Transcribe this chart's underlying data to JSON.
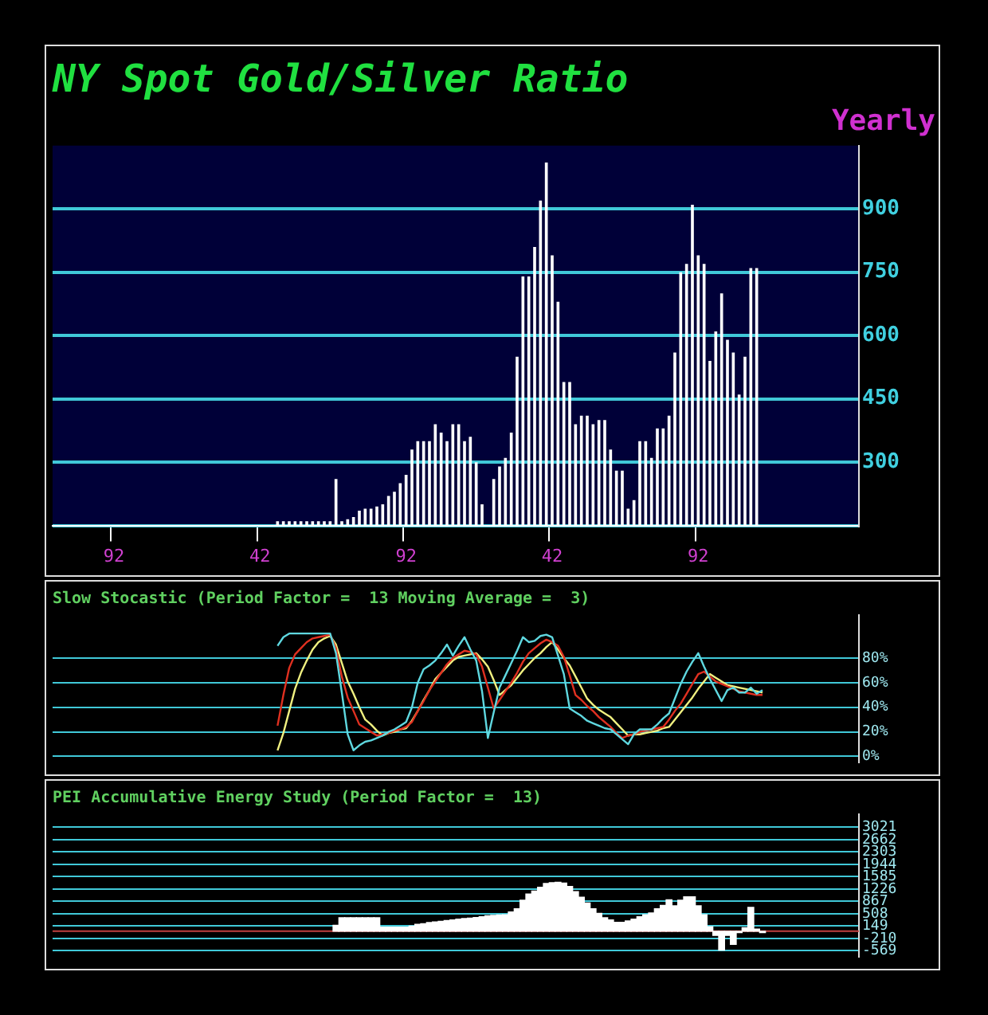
{
  "chart_data": [
    {
      "type": "bar",
      "title": "NY Spot Gold/Silver Ratio",
      "subtitle": "Yearly",
      "color": "#ffffff",
      "categories": [
        null,
        null,
        null,
        null,
        null,
        null,
        null,
        null,
        null,
        null,
        "92",
        null,
        null,
        null,
        null,
        null,
        null,
        null,
        null,
        null,
        null,
        null,
        null,
        null,
        null,
        null,
        null,
        null,
        null,
        null,
        null,
        null,
        null,
        null,
        null,
        "42",
        null,
        null,
        null,
        null,
        null,
        null,
        null,
        null,
        null,
        null,
        null,
        null,
        null,
        null,
        null,
        null,
        null,
        null,
        null,
        null,
        null,
        null,
        null,
        null,
        "92",
        null,
        null,
        null,
        null,
        null,
        null,
        null,
        null,
        null,
        null,
        null,
        null,
        null,
        null,
        null,
        null,
        null,
        null,
        null,
        null,
        null,
        null,
        null,
        null,
        "42",
        null,
        null,
        null,
        null,
        null,
        null,
        null,
        null,
        null,
        null,
        null,
        null,
        null,
        null,
        null,
        null,
        null,
        null,
        null,
        null,
        null,
        null,
        null,
        null,
        "92",
        null,
        null,
        null,
        null,
        null,
        null,
        null,
        null,
        null,
        null,
        null,
        null,
        null,
        null,
        null,
        null,
        null,
        null,
        null,
        null,
        null,
        null,
        null,
        null,
        null,
        null,
        null
      ],
      "values": [
        null,
        null,
        null,
        null,
        null,
        null,
        null,
        null,
        null,
        null,
        null,
        null,
        null,
        null,
        null,
        null,
        null,
        null,
        null,
        null,
        null,
        null,
        null,
        null,
        null,
        null,
        null,
        null,
        null,
        null,
        null,
        null,
        null,
        null,
        null,
        null,
        null,
        null,
        160,
        160,
        160,
        160,
        160,
        160,
        160,
        160,
        160,
        160,
        260,
        160,
        165,
        170,
        185,
        190,
        190,
        195,
        200,
        220,
        230,
        250,
        270,
        330,
        350,
        350,
        350,
        390,
        370,
        350,
        390,
        390,
        350,
        360,
        300,
        200,
        150,
        260,
        290,
        310,
        370,
        550,
        740,
        740,
        810,
        920,
        1010,
        790,
        680,
        490,
        490,
        390,
        410,
        410,
        390,
        400,
        400,
        330,
        280,
        280,
        190,
        210,
        350,
        350,
        310,
        380,
        380,
        410,
        560,
        750,
        770,
        910,
        790,
        770,
        540,
        610,
        700,
        590,
        560,
        460,
        550,
        760,
        760,
        null,
        null,
        null,
        null,
        null,
        null,
        null,
        null,
        null,
        null,
        null,
        null,
        null,
        null,
        null,
        null,
        null
      ],
      "ylim": [
        150,
        1050
      ],
      "yticks": [
        {
          "value": 150,
          "label": null
        },
        300,
        450,
        600,
        750,
        900
      ],
      "grid": "y"
    },
    {
      "type": "line",
      "title": "Slow Stocastic (Period Factor =  13 Moving Average =  3)",
      "ylim": [
        -5,
        115
      ],
      "categories": [
        null,
        null,
        null,
        null,
        null,
        null,
        null,
        null,
        null,
        null,
        null,
        null,
        null,
        null,
        null,
        null,
        null,
        null,
        null,
        null,
        null,
        null,
        null,
        null,
        null,
        null,
        null,
        null,
        null,
        null,
        null,
        null,
        null,
        null,
        null,
        null,
        null,
        null,
        null,
        null,
        null,
        null,
        null,
        null,
        null,
        null,
        null,
        null,
        null,
        null,
        null,
        null,
        null,
        null,
        null,
        null,
        null,
        null,
        null,
        null,
        null,
        null,
        null,
        null,
        null,
        null,
        null,
        null,
        null,
        null,
        null,
        null,
        null,
        null,
        null,
        null,
        null,
        null,
        null,
        null,
        null,
        null,
        null,
        null,
        null,
        null,
        null,
        null,
        null,
        null,
        null,
        null,
        null,
        null,
        null,
        null,
        null,
        null,
        null,
        null,
        null,
        null,
        null,
        null,
        null,
        null,
        null,
        null,
        null,
        null,
        null,
        null,
        null,
        null,
        null,
        null,
        null,
        null,
        null,
        null,
        null,
        null,
        null,
        null,
        null,
        null,
        null,
        null,
        null,
        null,
        null,
        null,
        null,
        null,
        null,
        null,
        null,
        null
      ],
      "yticks": [
        {
          "value": 0,
          "label": "0%"
        },
        {
          "value": 20,
          "label": "20%"
        },
        {
          "value": 40,
          "label": "40%"
        },
        {
          "value": 60,
          "label": "60%"
        },
        {
          "value": 80,
          "label": "80%"
        }
      ],
      "grid": "y",
      "tick_labels": "y",
      "series": [
        {
          "color": "#5fd8e0",
          "values": [
            null,
            null,
            null,
            null,
            null,
            null,
            null,
            null,
            null,
            null,
            null,
            null,
            null,
            null,
            null,
            null,
            null,
            null,
            null,
            null,
            null,
            null,
            null,
            null,
            null,
            null,
            null,
            null,
            null,
            null,
            null,
            null,
            null,
            null,
            null,
            null,
            null,
            null,
            90,
            97,
            100,
            100,
            100,
            100,
            100,
            100,
            100,
            100,
            84,
            52,
            18,
            5,
            9,
            12,
            13,
            15,
            17,
            20,
            22,
            25,
            28,
            40,
            60,
            71,
            74,
            78,
            84,
            91,
            82,
            90,
            97,
            87,
            78,
            53,
            15,
            36,
            56,
            66,
            76,
            86,
            97,
            93,
            94,
            98,
            99,
            97,
            82,
            67,
            39,
            36,
            33,
            29,
            27,
            25,
            23,
            22,
            18,
            14,
            10,
            18,
            22,
            22,
            22,
            26,
            31,
            35,
            47,
            59,
            69,
            77,
            84,
            73,
            63,
            54,
            45,
            54,
            56,
            52,
            52,
            56,
            51,
            54,
            null,
            null,
            null,
            null,
            null,
            null,
            null,
            null,
            null,
            null,
            null,
            null,
            null,
            null,
            null,
            null
          ]
        },
        {
          "color": "#e03020",
          "values": [
            null,
            null,
            null,
            null,
            null,
            null,
            null,
            null,
            null,
            null,
            null,
            null,
            null,
            null,
            null,
            null,
            null,
            null,
            null,
            null,
            null,
            null,
            null,
            null,
            null,
            null,
            null,
            null,
            null,
            null,
            null,
            null,
            null,
            null,
            null,
            null,
            null,
            null,
            25,
            50,
            72,
            83,
            88,
            93,
            96,
            97,
            98,
            99,
            88,
            65,
            48,
            37,
            26,
            23,
            20,
            17,
            18,
            19,
            21,
            22,
            24,
            28,
            37,
            45,
            54,
            61,
            68,
            75,
            80,
            83,
            86,
            85,
            83,
            73,
            56,
            39,
            46,
            53,
            60,
            68,
            77,
            84,
            88,
            92,
            95,
            93,
            90,
            81,
            66,
            50,
            46,
            41,
            37,
            32,
            28,
            24,
            19,
            15,
            17,
            18,
            20,
            21,
            22,
            23,
            24,
            30,
            37,
            43,
            51,
            59,
            67,
            69,
            65,
            61,
            59,
            57,
            55,
            53,
            52,
            51,
            50,
            50,
            null,
            null,
            null,
            null,
            null,
            null,
            null,
            null,
            null,
            null,
            null,
            null,
            null,
            null,
            null,
            null
          ]
        },
        {
          "color": "#f0f080",
          "values": [
            null,
            null,
            null,
            null,
            null,
            null,
            null,
            null,
            null,
            null,
            null,
            null,
            null,
            null,
            null,
            null,
            null,
            null,
            null,
            null,
            null,
            null,
            null,
            null,
            null,
            null,
            null,
            null,
            null,
            null,
            null,
            null,
            null,
            null,
            null,
            null,
            null,
            null,
            5,
            19,
            37,
            55,
            68,
            78,
            87,
            93,
            96,
            98,
            91,
            76,
            61,
            51,
            40,
            30,
            26,
            21,
            17,
            19,
            20,
            22,
            23,
            29,
            37,
            46,
            54,
            63,
            68,
            73,
            78,
            81,
            82,
            83,
            84,
            79,
            73,
            62,
            50,
            54,
            58,
            64,
            70,
            75,
            80,
            84,
            89,
            93,
            87,
            80,
            74,
            65,
            56,
            47,
            42,
            38,
            35,
            32,
            27,
            22,
            17,
            18,
            18,
            19,
            20,
            21,
            23,
            24,
            30,
            36,
            42,
            48,
            55,
            61,
            67,
            64,
            61,
            58,
            57,
            56,
            55,
            54,
            53,
            52,
            null,
            null,
            null,
            null,
            null,
            null,
            null,
            null,
            null,
            null,
            null,
            null,
            null,
            null,
            null,
            null
          ]
        }
      ]
    },
    {
      "type": "bar",
      "title": "PEI Accumulative Energy Study (Period Factor =  13)",
      "color": "#ffffff",
      "ylim": [
        -750,
        3400
      ],
      "categories": [
        null,
        null,
        null,
        null,
        null,
        null,
        null,
        null,
        null,
        null,
        null,
        null,
        null,
        null,
        null,
        null,
        null,
        null,
        null,
        null,
        null,
        null,
        null,
        null,
        null,
        null,
        null,
        null,
        null,
        null,
        null,
        null,
        null,
        null,
        null,
        null,
        null,
        null,
        null,
        null,
        null,
        null,
        null,
        null,
        null,
        null,
        null,
        null,
        null,
        null,
        null,
        null,
        null,
        null,
        null,
        null,
        null,
        null,
        null,
        null,
        null,
        null,
        null,
        null,
        null,
        null,
        null,
        null,
        null,
        null,
        null,
        null,
        null,
        null,
        null,
        null,
        null,
        null,
        null,
        null,
        null,
        null,
        null,
        null,
        null,
        null,
        null,
        null,
        null,
        null,
        null,
        null,
        null,
        null,
        null,
        null,
        null,
        null,
        null,
        null,
        null,
        null,
        null,
        null,
        null,
        null,
        null,
        null,
        null,
        null,
        null,
        null,
        null,
        null,
        null,
        null,
        null,
        null,
        null,
        null,
        null,
        null,
        null,
        null,
        null,
        null,
        null,
        null,
        null,
        null,
        null,
        null,
        null,
        null,
        null,
        null,
        null,
        null
      ],
      "yticks": [
        3021,
        2662,
        2303,
        1944,
        1585,
        1226,
        867,
        508,
        149,
        -210,
        -569
      ],
      "grid": "y",
      "tick_labels": "y",
      "ref_lines": [
        {
          "axis": "y",
          "value": 0,
          "color": "#c04040"
        }
      ],
      "values": [
        null,
        null,
        null,
        null,
        null,
        null,
        null,
        null,
        null,
        null,
        null,
        null,
        null,
        null,
        null,
        null,
        null,
        null,
        null,
        null,
        null,
        null,
        null,
        null,
        null,
        null,
        null,
        null,
        null,
        null,
        null,
        null,
        null,
        null,
        null,
        null,
        null,
        null,
        null,
        null,
        null,
        null,
        null,
        null,
        null,
        null,
        null,
        null,
        170,
        390,
        390,
        390,
        390,
        390,
        390,
        390,
        120,
        120,
        120,
        120,
        120,
        150,
        200,
        220,
        250,
        270,
        290,
        310,
        330,
        350,
        370,
        380,
        400,
        420,
        450,
        460,
        470,
        480,
        560,
        650,
        900,
        1080,
        1170,
        1280,
        1390,
        1410,
        1420,
        1400,
        1300,
        1150,
        990,
        820,
        650,
        520,
        390,
        330,
        260,
        260,
        300,
        350,
        420,
        480,
        530,
        650,
        750,
        910,
        740,
        900,
        1000,
        1000,
        740,
        480,
        130,
        -120,
        -550,
        -120,
        -380,
        -40,
        100,
        690,
        60,
        -40,
        null,
        null,
        null,
        null,
        null,
        null,
        null,
        null,
        null,
        null,
        null,
        null,
        null,
        null,
        null,
        null
      ]
    }
  ]
}
